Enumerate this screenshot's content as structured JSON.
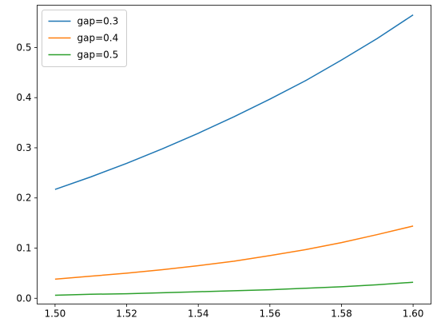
{
  "chart_data": {
    "type": "line",
    "title": "",
    "xlabel": "",
    "ylabel": "",
    "xlim": [
      1.495,
      1.605
    ],
    "ylim": [
      -0.0115,
      0.5843
    ],
    "xticks": [
      1.5,
      1.52,
      1.54,
      1.56,
      1.58,
      1.6
    ],
    "xtick_labels": [
      "1.50",
      "1.52",
      "1.54",
      "1.56",
      "1.58",
      "1.60"
    ],
    "yticks": [
      0.0,
      0.1,
      0.2,
      0.3,
      0.4,
      0.5
    ],
    "ytick_labels": [
      "0.0",
      "0.1",
      "0.2",
      "0.3",
      "0.4",
      "0.5"
    ],
    "grid": false,
    "legend_position": "upper-left",
    "x": [
      1.5,
      1.51,
      1.52,
      1.53,
      1.54,
      1.55,
      1.56,
      1.57,
      1.58,
      1.59,
      1.6
    ],
    "series": [
      {
        "name": "gap=0.3",
        "color": "#1f77b4",
        "values": [
          0.217,
          0.242,
          0.269,
          0.298,
          0.329,
          0.362,
          0.397,
          0.434,
          0.475,
          0.518,
          0.565
        ]
      },
      {
        "name": "gap=0.4",
        "color": "#ff7f0e",
        "values": [
          0.038,
          0.044,
          0.05,
          0.057,
          0.065,
          0.074,
          0.085,
          0.097,
          0.111,
          0.127,
          0.144
        ]
      },
      {
        "name": "gap=0.5",
        "color": "#2ca02c",
        "values": [
          0.006,
          0.008,
          0.009,
          0.011,
          0.013,
          0.015,
          0.017,
          0.02,
          0.023,
          0.027,
          0.032
        ]
      }
    ]
  }
}
